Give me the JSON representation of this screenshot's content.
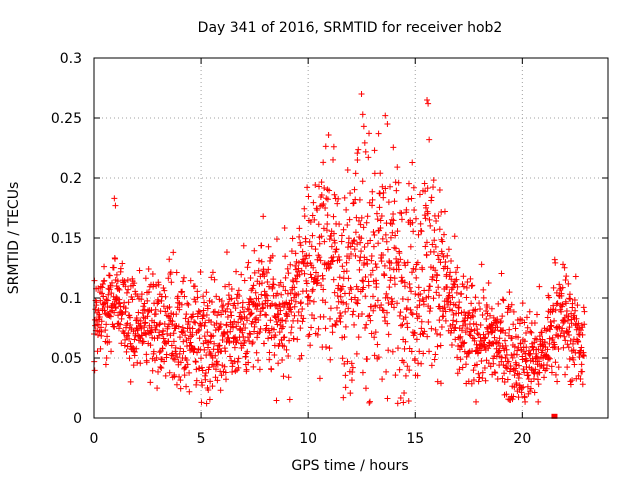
{
  "chart_data": {
    "type": "scatter",
    "title": "Day 341 of 2016, SRMTID for receiver hob2",
    "xlabel": "GPS time / hours",
    "ylabel": "SRMTID / TECUs",
    "xlim": [
      0,
      24
    ],
    "ylim": [
      0,
      0.3
    ],
    "xticks": [
      0,
      5,
      10,
      15,
      20
    ],
    "yticks": [
      0,
      0.05,
      0.1,
      0.15,
      0.2,
      0.25,
      0.3
    ],
    "xtick_labels": [
      "0",
      "5",
      "10",
      "15",
      "20"
    ],
    "ytick_labels": [
      "0",
      "0.05",
      "0.1",
      "0.15",
      "0.2",
      "0.25",
      "0.3"
    ],
    "grid": true,
    "marker": "+",
    "color": "#ff0000",
    "trend": [
      [
        0.0,
        0.08
      ],
      [
        0.5,
        0.095
      ],
      [
        1.0,
        0.105
      ],
      [
        1.5,
        0.088
      ],
      [
        2.0,
        0.075
      ],
      [
        2.5,
        0.085
      ],
      [
        3.0,
        0.08
      ],
      [
        3.5,
        0.072
      ],
      [
        4.0,
        0.068
      ],
      [
        4.5,
        0.07
      ],
      [
        5.0,
        0.072
      ],
      [
        5.5,
        0.068
      ],
      [
        6.0,
        0.072
      ],
      [
        6.5,
        0.078
      ],
      [
        7.0,
        0.08
      ],
      [
        7.5,
        0.085
      ],
      [
        8.0,
        0.09
      ],
      [
        8.5,
        0.085
      ],
      [
        9.0,
        0.085
      ],
      [
        9.5,
        0.11
      ],
      [
        10.0,
        0.12
      ],
      [
        10.5,
        0.135
      ],
      [
        11.0,
        0.14
      ],
      [
        11.5,
        0.12
      ],
      [
        12.0,
        0.115
      ],
      [
        12.5,
        0.125
      ],
      [
        13.0,
        0.13
      ],
      [
        13.5,
        0.125
      ],
      [
        14.0,
        0.125
      ],
      [
        14.5,
        0.118
      ],
      [
        15.0,
        0.115
      ],
      [
        15.5,
        0.13
      ],
      [
        16.0,
        0.12
      ],
      [
        16.5,
        0.105
      ],
      [
        17.0,
        0.075
      ],
      [
        17.5,
        0.068
      ],
      [
        18.0,
        0.068
      ],
      [
        18.5,
        0.065
      ],
      [
        19.0,
        0.062
      ],
      [
        19.5,
        0.055
      ],
      [
        20.0,
        0.05
      ],
      [
        20.5,
        0.05
      ],
      [
        21.0,
        0.052
      ],
      [
        21.5,
        0.085
      ],
      [
        22.0,
        0.08
      ],
      [
        22.5,
        0.068
      ],
      [
        22.9,
        0.062
      ]
    ],
    "spread": [
      [
        0.0,
        0.018
      ],
      [
        3.0,
        0.022
      ],
      [
        6.0,
        0.025
      ],
      [
        9.0,
        0.025
      ],
      [
        10.5,
        0.04
      ],
      [
        12.5,
        0.05
      ],
      [
        15.5,
        0.045
      ],
      [
        16.5,
        0.03
      ],
      [
        17.5,
        0.022
      ],
      [
        20.0,
        0.02
      ],
      [
        22.9,
        0.022
      ]
    ],
    "spikes": [
      [
        0.95,
        0.183
      ],
      [
        1.0,
        0.177
      ],
      [
        3.7,
        0.138
      ],
      [
        5.3,
        0.025
      ],
      [
        7.9,
        0.168
      ],
      [
        10.7,
        0.213
      ],
      [
        11.2,
        0.226
      ],
      [
        12.3,
        0.215
      ],
      [
        12.55,
        0.253
      ],
      [
        12.6,
        0.243
      ],
      [
        13.1,
        0.223
      ],
      [
        13.6,
        0.252
      ],
      [
        13.7,
        0.245
      ],
      [
        15.55,
        0.265
      ],
      [
        15.6,
        0.262
      ],
      [
        15.65,
        0.232
      ],
      [
        16.15,
        0.19
      ],
      [
        20.1,
        0.018
      ],
      [
        21.9,
        0.128
      ]
    ],
    "cluster_marker": [
      21.5,
      0.001
    ]
  }
}
